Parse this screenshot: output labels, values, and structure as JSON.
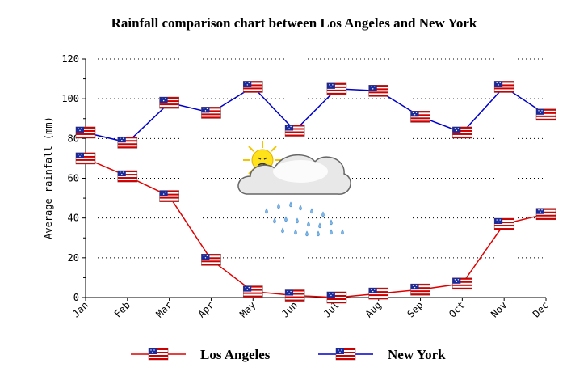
{
  "chart_data": {
    "type": "line",
    "title": "Rainfall comparison chart between Los Angeles and New York",
    "xlabel": "",
    "ylabel": "Average rainfall (mm)",
    "categories": [
      "Jan",
      "Feb",
      "Mar",
      "Apr",
      "May",
      "Jun",
      "Jul",
      "Aug",
      "Sep",
      "Oct",
      "Nov",
      "Dec"
    ],
    "ylim": [
      0,
      120
    ],
    "yticks": [
      "0",
      "20",
      "40",
      "60",
      "80",
      "100",
      "120"
    ],
    "grid": true,
    "legend_position": "bottom",
    "marker_icon": "us-flag-icon",
    "decoration_icon": "sun-cloud-rain-icon",
    "series": [
      {
        "name": "Los Angeles",
        "color": "#e00000",
        "values": [
          70,
          61,
          51,
          19,
          3,
          1,
          0,
          2,
          4,
          7,
          37,
          42
        ]
      },
      {
        "name": "New York",
        "color": "#0000cc",
        "values": [
          83,
          78,
          98,
          93,
          106,
          84,
          105,
          104,
          91,
          83,
          106,
          92
        ]
      }
    ]
  }
}
